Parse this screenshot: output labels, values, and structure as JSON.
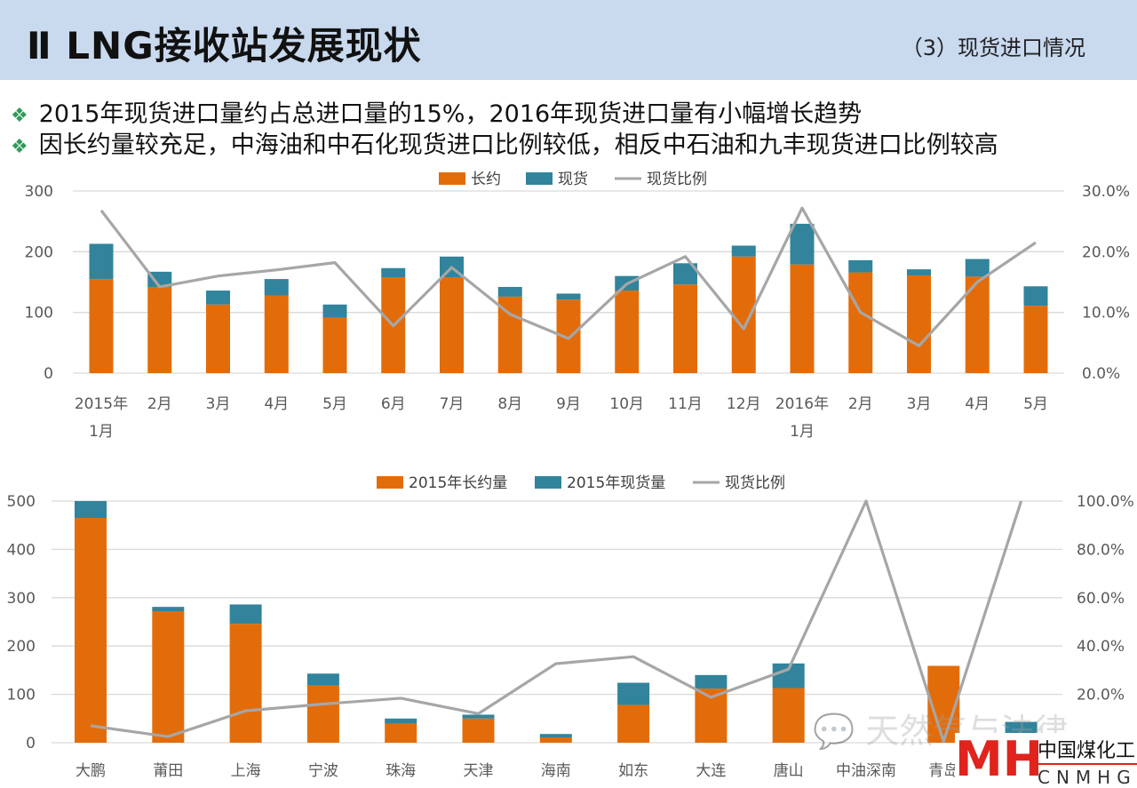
{
  "header": {
    "title": "Ⅱ LNG接收站发展现状",
    "subtitle": "（3）现货进口情况"
  },
  "bullets": [
    {
      "icon": "diamond-bullet-icon",
      "text": "2015年现货进口量约占总进口量的15%，2016年现货进口量有小幅增长趋势"
    },
    {
      "icon": "diamond-bullet-icon",
      "text": "因长约量较充足，中海油和中石化现货进口比例较低，相反中石油和九丰现货进口比例较高"
    }
  ],
  "colors": {
    "long": "#e36c0a",
    "spot": "#31849b",
    "ratio": "#a6a6a6",
    "header_bg": "#c9d9ee",
    "bullet": "#2e9b5a"
  },
  "chart_data": [
    {
      "type": "bar",
      "stacked": true,
      "categories": [
        "2015年\n1月",
        "2月",
        "3月",
        "4月",
        "5月",
        "6月",
        "7月",
        "8月",
        "9月",
        "10月",
        "11月",
        "12月",
        "2016年\n1月",
        "2月",
        "3月",
        "4月",
        "5月"
      ],
      "series": [
        {
          "name": "长约",
          "kind": "bar",
          "values": [
            155,
            142,
            113,
            128,
            91,
            158,
            158,
            126,
            121,
            136,
            146,
            192,
            179,
            166,
            161,
            159,
            111
          ]
        },
        {
          "name": "现货",
          "kind": "bar",
          "values": [
            58,
            25,
            23,
            27,
            22,
            15,
            34,
            16,
            10,
            24,
            35,
            18,
            67,
            20,
            10,
            29,
            32
          ]
        },
        {
          "name": "现货比例",
          "kind": "line",
          "axis": "right",
          "values": [
            26.8,
            14.2,
            16.0,
            17.0,
            18.2,
            7.8,
            17.4,
            9.7,
            5.7,
            14.7,
            19.2,
            7.3,
            27.2,
            10.0,
            4.5,
            15.0,
            21.5
          ]
        }
      ],
      "ylim": [
        0,
        300
      ],
      "yticks": [
        "0",
        "100",
        "200",
        "300"
      ],
      "y2lim": [
        0,
        30
      ],
      "y2ticks": [
        "0.0%",
        "10.0%",
        "20.0%",
        "30.0%"
      ],
      "grid": true,
      "legend": "top-center"
    },
    {
      "type": "bar",
      "stacked": true,
      "categories": [
        "大鹏",
        "莆田",
        "上海",
        "宁波",
        "珠海",
        "天津",
        "海南",
        "如东",
        "大连",
        "唐山",
        "中油深南",
        "青岛",
        ""
      ],
      "series": [
        {
          "name": "2015年长约量",
          "kind": "bar",
          "values": [
            465,
            272,
            246,
            118,
            39,
            50,
            11,
            78,
            112,
            113,
            0,
            159,
            0
          ]
        },
        {
          "name": "2015年现货量",
          "kind": "bar",
          "values": [
            35,
            9,
            40,
            25,
            11,
            8,
            7,
            46,
            28,
            51,
            0,
            0,
            43
          ]
        },
        {
          "name": "现货比例",
          "kind": "line",
          "axis": "right",
          "values": [
            7.0,
            2.5,
            13.2,
            16.0,
            18.4,
            12.0,
            32.7,
            35.6,
            18.8,
            30.4,
            100,
            0.5,
            100
          ]
        }
      ],
      "ylim": [
        0,
        500
      ],
      "yticks": [
        "0",
        "100",
        "200",
        "300",
        "400",
        "500"
      ],
      "y2lim": [
        0,
        100
      ],
      "y2ticks": [
        "0.0%",
        "20.0%",
        "40.0%",
        "60.0%",
        "80.0%",
        "100.0%"
      ],
      "grid": true,
      "legend": "top-center"
    }
  ],
  "watermark": "天然气与法律",
  "logo": {
    "mark": "MH",
    "name_cn": "中国煤化工",
    "name_en": "CNMHG"
  }
}
